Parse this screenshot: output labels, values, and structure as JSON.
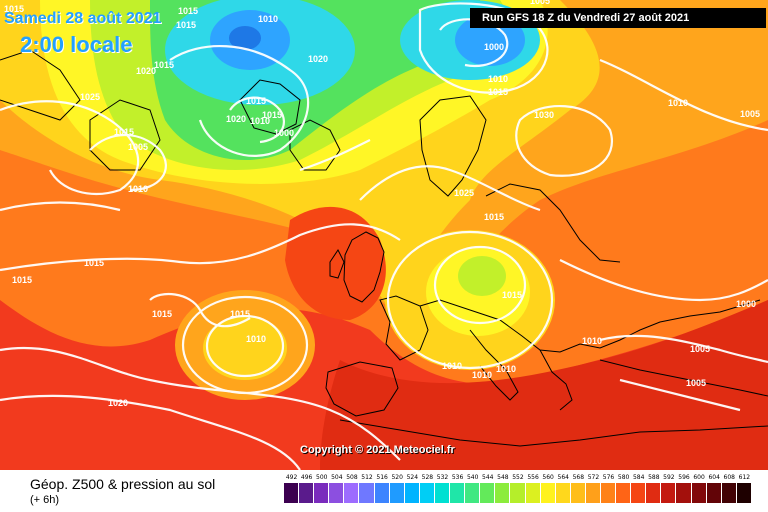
{
  "header": {
    "date": "Samedi 28 août 2021",
    "time": "2:00 locale",
    "run_info": "Run GFS 18 Z du Vendredi 27 août 2021",
    "copyright": "Copyright © 2021 Meteociel.fr"
  },
  "legend": {
    "title": "Géop. Z500 & pression au sol",
    "subtitle": "(+ 6h)",
    "scale_values": [
      "492",
      "496",
      "500",
      "504",
      "508",
      "512",
      "516",
      "520",
      "524",
      "528",
      "532",
      "536",
      "540",
      "544",
      "548",
      "552",
      "556",
      "560",
      "564",
      "568",
      "572",
      "576",
      "580",
      "584",
      "588",
      "592",
      "596",
      "600",
      "604",
      "608",
      "612"
    ],
    "scale_colors": [
      "#3c0050",
      "#5a1b8c",
      "#7a2bbd",
      "#8c4fe0",
      "#9d6cff",
      "#6f78ff",
      "#3c84ff",
      "#1f9bff",
      "#00b4ff",
      "#00cef5",
      "#00e0d2",
      "#1fe6a8",
      "#40e882",
      "#63ea5a",
      "#8cec3c",
      "#b5ee2a",
      "#dcf020",
      "#fff21e",
      "#ffd81c",
      "#ffbe1a",
      "#ffa01a",
      "#ff8218",
      "#ff6416",
      "#f54614",
      "#e02c12",
      "#c41a10",
      "#a3100c",
      "#82080a",
      "#620407",
      "#420204",
      "#1e0000"
    ]
  },
  "map": {
    "zone_colors": {
      "red": "#f23a1e",
      "orange": "#ff7a1c",
      "light_orange": "#ffa51c",
      "yellow_orange": "#ffd41c",
      "yellow": "#fff626",
      "lime": "#c2f02a",
      "green": "#54e25e",
      "cyan": "#2fd8e8",
      "blue": "#2ea4ff",
      "deep_blue": "#1e78e6"
    },
    "pressure_labels": [
      "1015",
      "1015",
      "1015",
      "1010",
      "1020",
      "1015",
      "1025",
      "1015",
      "1005",
      "1010",
      "1020",
      "1015",
      "1010",
      "1015",
      "1000",
      "1020",
      "1000",
      "1005",
      "1010",
      "1015",
      "1030",
      "1010",
      "1005",
      "1025",
      "1015",
      "1015",
      "1015",
      "1015",
      "1015",
      "1010",
      "1015",
      "1020",
      "1010",
      "1010",
      "1010",
      "1010",
      "1000",
      "1005",
      "1005"
    ]
  }
}
